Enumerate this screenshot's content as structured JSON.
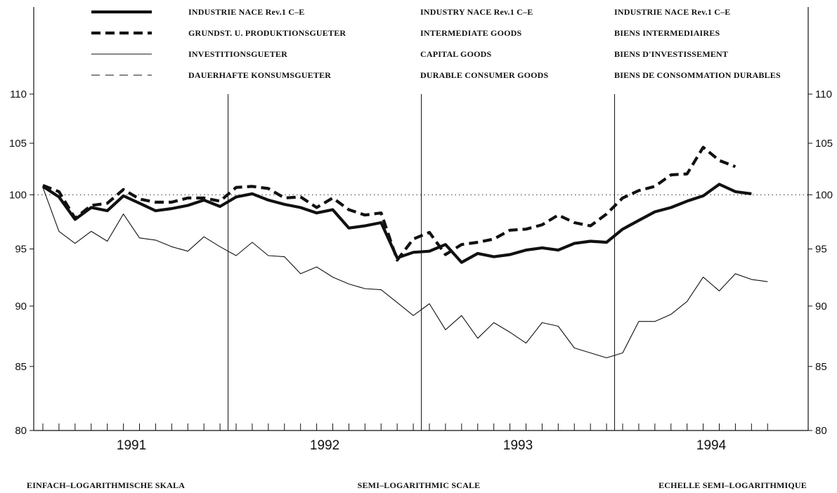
{
  "chart_data": {
    "type": "line",
    "scale": "semi-logarithmic",
    "ylim": [
      80,
      110
    ],
    "y_ticks": [
      "80",
      "85",
      "90",
      "95",
      "100",
      "105",
      "110"
    ],
    "reference_line": 100,
    "x_start": "1991-01",
    "x_months": 46,
    "years": [
      "1991",
      "1992",
      "1993",
      "1994"
    ],
    "grid": false,
    "legend_placement": "top",
    "series": [
      {
        "name": "INDUSTRIE NACE Rev.1 C–E",
        "name_en": "INDUSTRY NACE Rev.1 C–E",
        "name_fr": "INDUSTRIE NACE Rev.1 C–E",
        "style": "thick-solid",
        "values": [
          100.8,
          99.8,
          97.7,
          98.8,
          98.5,
          99.9,
          99.2,
          98.5,
          98.7,
          99.0,
          99.5,
          98.9,
          99.8,
          100.1,
          99.5,
          99.1,
          98.8,
          98.3,
          98.6,
          96.9,
          97.1,
          97.4,
          94.2,
          94.7,
          94.8,
          95.4,
          93.8,
          94.6,
          94.3,
          94.5,
          94.9,
          95.1,
          94.9,
          95.5,
          95.7,
          95.6,
          96.8,
          97.6,
          98.4,
          98.8,
          99.4,
          99.9,
          101.0,
          100.3,
          100.1
        ]
      },
      {
        "name": "GRUNDST. U. PRODUKTIONSGUETER",
        "name_en": "INTERMEDIATE GOODS",
        "name_fr": "BIENS INTERMEDIAIRES",
        "style": "thick-dashed",
        "values": [
          100.9,
          100.3,
          97.8,
          99.0,
          99.2,
          100.5,
          99.6,
          99.3,
          99.3,
          99.7,
          99.7,
          99.4,
          100.7,
          100.8,
          100.6,
          99.7,
          99.8,
          98.8,
          99.7,
          98.6,
          98.1,
          98.3,
          94.0,
          95.9,
          96.5,
          94.5,
          95.4,
          95.6,
          95.9,
          96.7,
          96.8,
          97.2,
          98.1,
          97.4,
          97.1,
          98.2,
          99.7,
          100.4,
          100.8,
          101.9,
          102.0,
          104.6,
          103.3,
          102.7
        ]
      },
      {
        "name": "INVESTITIONSGUETER",
        "name_en": "CAPITAL GOODS",
        "name_fr": "BIENS D'INVESTISSEMENT",
        "style": "thin-solid",
        "values": [
          100.7,
          96.6,
          95.5,
          96.6,
          95.7,
          98.2,
          96.0,
          95.8,
          95.2,
          94.8,
          96.1,
          95.2,
          94.4,
          95.6,
          94.4,
          94.3,
          92.8,
          93.4,
          92.5,
          91.9,
          91.5,
          91.4,
          90.3,
          89.2,
          90.2,
          88.0,
          89.2,
          87.3,
          88.6,
          87.8,
          86.9,
          88.6,
          88.3,
          86.5,
          86.1,
          85.7,
          86.1,
          88.7,
          88.7,
          89.3,
          90.4,
          92.5,
          91.3,
          92.8,
          92.3,
          92.1
        ]
      },
      {
        "name": "DAUERHAFTE KONSUMSGUETER",
        "name_en": "DURABLE CONSUMER GOODS",
        "name_fr": "BIENS DE CONSOMMATION DURABLES",
        "style": "thin-dashed",
        "values": []
      }
    ],
    "footer": {
      "left": "EINFACH–LOGARITHMISCHE SKALA",
      "center": "SEMI–LOGARITHMIC SCALE",
      "right": "ECHELLE SEMI–LOGARITHMIQUE"
    }
  }
}
